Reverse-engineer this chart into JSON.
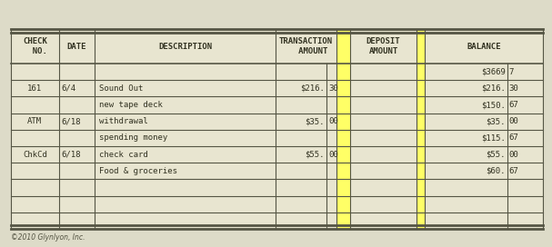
{
  "bg_color": "#dddbc8",
  "table_bg": "#e8e5d0",
  "border_color": "#555544",
  "yellow_col_color": "#ffff66",
  "text_color": "#333322",
  "copyright": "©2010 Glynlyon, Inc.",
  "trans_left": [
    "",
    "$216.",
    "",
    "$35.",
    "",
    "$55.",
    "",
    "",
    "",
    ""
  ],
  "trans_right": [
    "",
    "30",
    "",
    "00",
    "",
    "00",
    "",
    "",
    "",
    ""
  ],
  "bal_left": [
    "$3669",
    "$216.",
    "$150.",
    "$35.",
    "$115.",
    "$55.",
    "$60.",
    "",
    "",
    ""
  ],
  "bal_right": [
    "7",
    "30",
    "67",
    "00",
    "67",
    "00",
    "67",
    "",
    "",
    ""
  ],
  "checks": [
    "",
    "161",
    "",
    "ATM",
    "",
    "ChkCd",
    "",
    "",
    "",
    ""
  ],
  "dates": [
    "",
    "6/4",
    "",
    "6/18",
    "",
    "6/18",
    "",
    "",
    "",
    ""
  ],
  "descs": [
    "",
    "Sound Out",
    "new tape deck",
    "withdrawal",
    "spending money",
    "check card",
    "Food & groceries",
    "",
    "",
    ""
  ],
  "font_size": 6.5,
  "header_font_size": 6.5
}
